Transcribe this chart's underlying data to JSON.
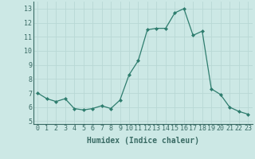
{
  "x": [
    0,
    1,
    2,
    3,
    4,
    5,
    6,
    7,
    8,
    9,
    10,
    11,
    12,
    13,
    14,
    15,
    16,
    17,
    18,
    19,
    20,
    21,
    22,
    23
  ],
  "y": [
    7.0,
    6.6,
    6.4,
    6.6,
    5.9,
    5.8,
    5.9,
    6.1,
    5.9,
    6.5,
    8.3,
    9.3,
    11.5,
    11.6,
    11.6,
    12.7,
    13.0,
    11.1,
    11.4,
    7.3,
    6.9,
    6.0,
    5.7,
    5.5
  ],
  "xlabel": "Humidex (Indice chaleur)",
  "line_color": "#2e7d6e",
  "marker_color": "#2e7d6e",
  "bg_color": "#cce8e5",
  "grid_color": "#b8d8d5",
  "axis_color": "#3a6b65",
  "ylim": [
    4.8,
    13.5
  ],
  "xlim": [
    -0.5,
    23.5
  ],
  "yticks": [
    5,
    6,
    7,
    8,
    9,
    10,
    11,
    12,
    13
  ],
  "xticks": [
    0,
    1,
    2,
    3,
    4,
    5,
    6,
    7,
    8,
    9,
    10,
    11,
    12,
    13,
    14,
    15,
    16,
    17,
    18,
    19,
    20,
    21,
    22,
    23
  ],
  "tick_fontsize": 6.0,
  "xlabel_fontsize": 7.0
}
